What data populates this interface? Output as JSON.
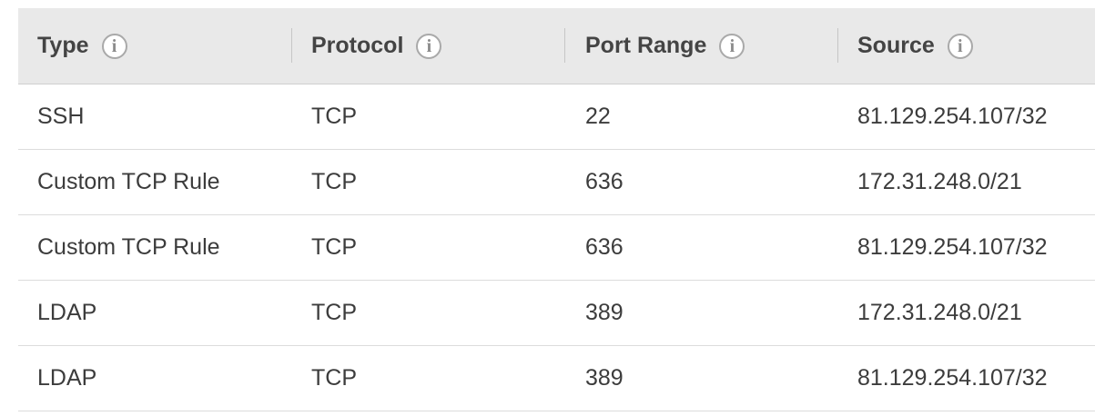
{
  "table": {
    "columns": [
      {
        "label": "Type",
        "icon": "info-icon"
      },
      {
        "label": "Protocol",
        "icon": "info-icon"
      },
      {
        "label": "Port Range",
        "icon": "info-icon"
      },
      {
        "label": "Source",
        "icon": "info-icon"
      }
    ],
    "info_glyph": "i",
    "rows": [
      {
        "type": "SSH",
        "protocol": "TCP",
        "port_range": "22",
        "source": "81.129.254.107/32"
      },
      {
        "type": "Custom TCP Rule",
        "protocol": "TCP",
        "port_range": "636",
        "source": "172.31.248.0/21"
      },
      {
        "type": "Custom TCP Rule",
        "protocol": "TCP",
        "port_range": "636",
        "source": "81.129.254.107/32"
      },
      {
        "type": "LDAP",
        "protocol": "TCP",
        "port_range": "389",
        "source": "172.31.248.0/21"
      },
      {
        "type": "LDAP",
        "protocol": "TCP",
        "port_range": "389",
        "source": "81.129.254.107/32"
      }
    ]
  },
  "colors": {
    "header_background": "#e9e9e9",
    "row_divider": "#dcdcdc",
    "text": "#3c3c3c"
  }
}
